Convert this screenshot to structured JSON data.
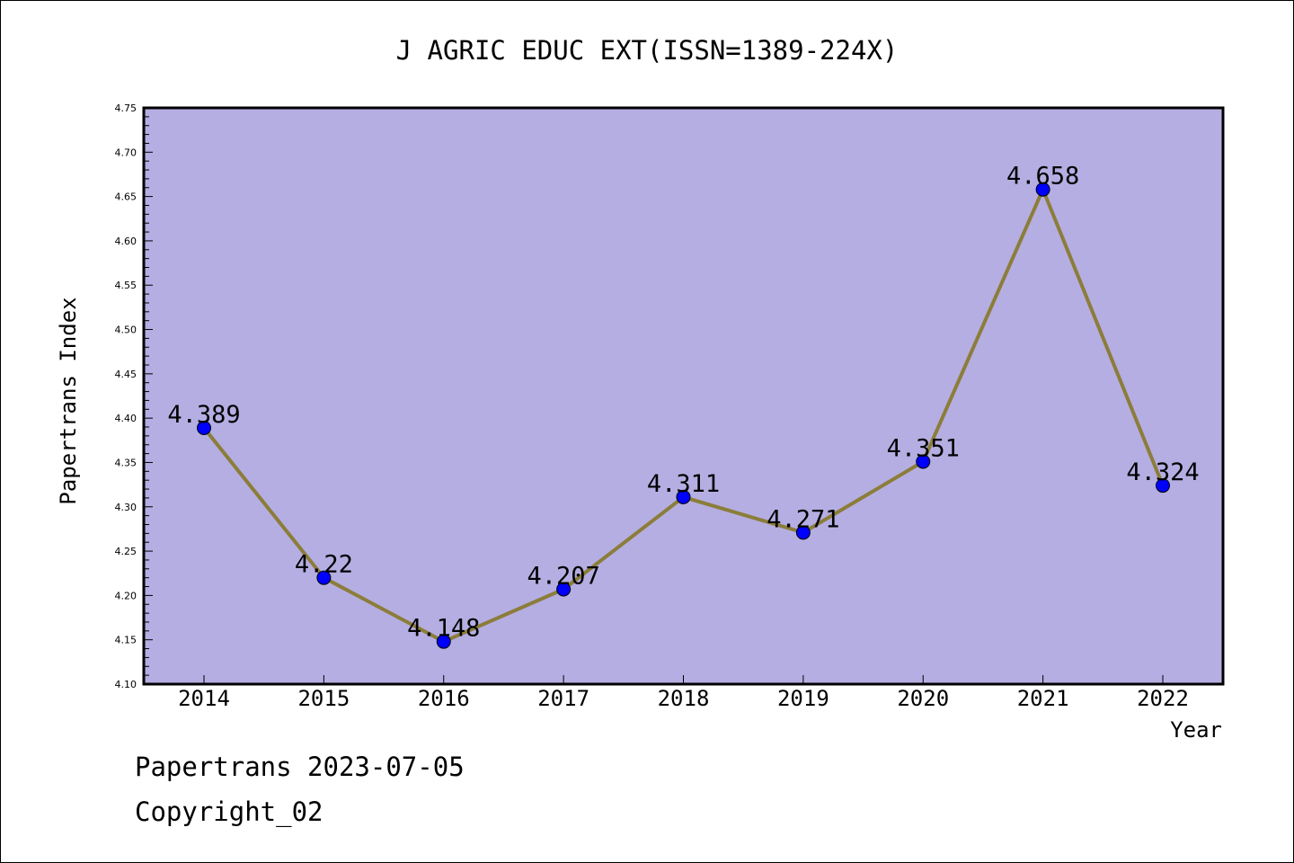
{
  "chart_data": {
    "type": "line",
    "title": "J AGRIC EDUC EXT(ISSN=1389-224X)",
    "xlabel": "Year",
    "ylabel": "Papertrans Index",
    "categories": [
      "2014",
      "2015",
      "2016",
      "2017",
      "2018",
      "2019",
      "2020",
      "2021",
      "2022"
    ],
    "series": [
      {
        "values": [
          4.389,
          4.22,
          4.148,
          4.207,
          4.311,
          4.271,
          4.351,
          4.658,
          4.324
        ],
        "labels": [
          "4.389",
          "4.22",
          "4.148",
          "4.207",
          "4.311",
          "4.271",
          "4.351",
          "4.658",
          "4.324"
        ]
      }
    ],
    "ylim": [
      4.1,
      4.75
    ],
    "yticks": [
      "4.10",
      "4.15",
      "4.20",
      "4.25",
      "4.30",
      "4.35",
      "4.40",
      "4.45",
      "4.50",
      "4.55",
      "4.60",
      "4.65",
      "4.70",
      "4.75"
    ],
    "grid": false,
    "colors": {
      "plot_background": "#b5aee2",
      "line": "#8b7d3a",
      "marker": "#0000ff"
    }
  },
  "footer": {
    "line1": "Papertrans 2023-07-05",
    "line2": "Copyright_02"
  }
}
